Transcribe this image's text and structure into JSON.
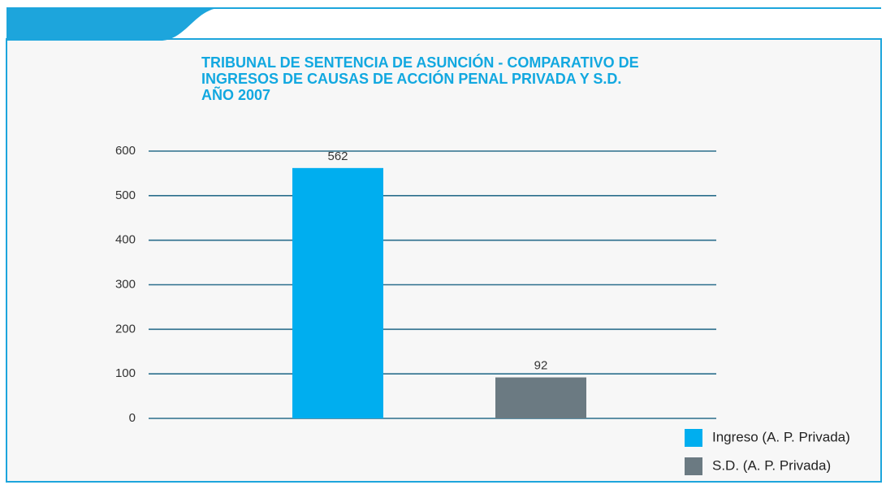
{
  "chart_data": {
    "type": "bar",
    "title": [
      "TRIBUNAL DE SENTENCIA DE ASUNCIÓN - COMPARATIVO DE",
      "INGRESOS DE CAUSAS DE ACCIÓN PENAL PRIVADA Y S.D.",
      "AÑO 2007"
    ],
    "series": [
      {
        "name": "Ingreso (A. P. Privada)",
        "color": "#00aeef",
        "values": [
          562
        ]
      },
      {
        "name": "S.D. (A. P. Privada)",
        "color": "#6b7a82",
        "values": [
          92
        ]
      }
    ],
    "ylim": [
      0,
      600
    ],
    "yticks": [
      0,
      100,
      200,
      300,
      400,
      500,
      600
    ],
    "grid": true,
    "legend": "bottom-right"
  }
}
